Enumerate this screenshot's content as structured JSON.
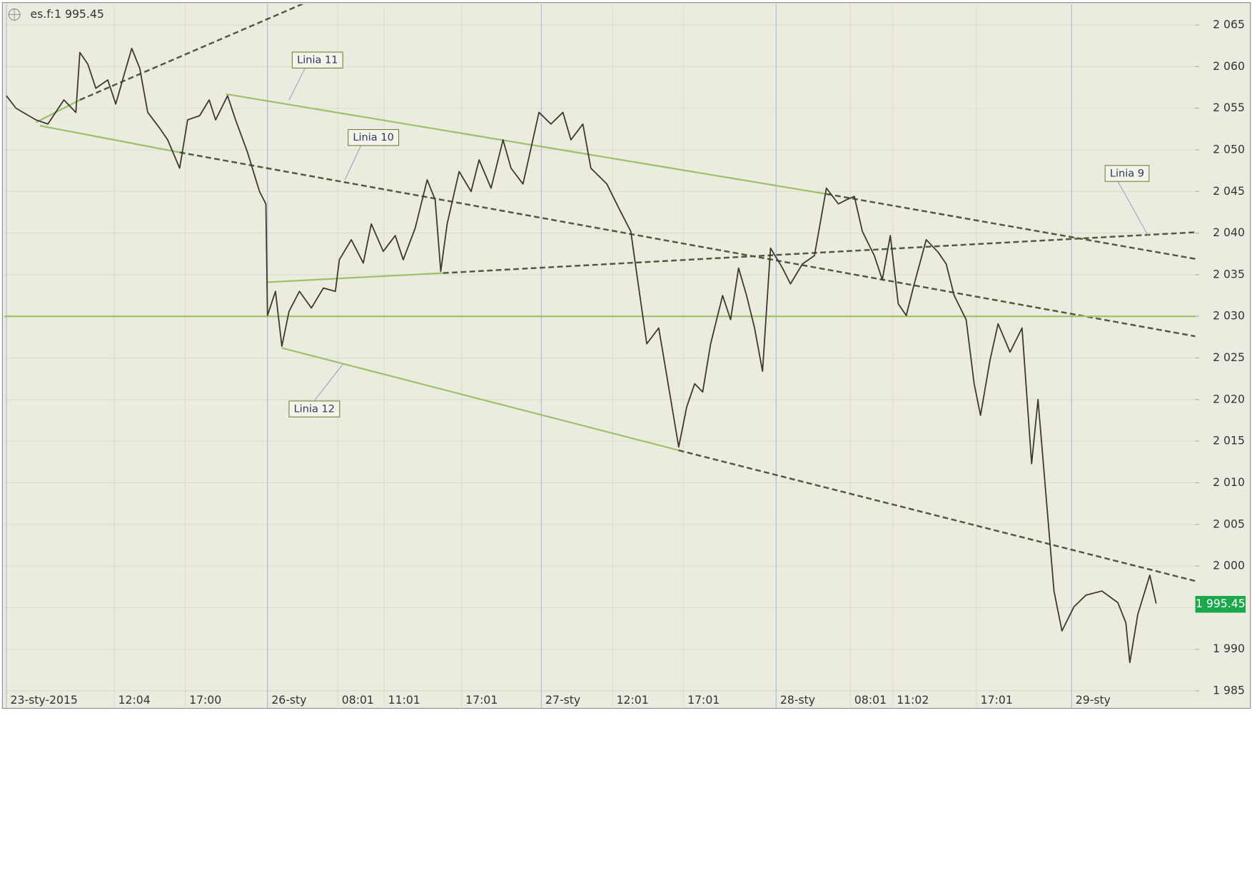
{
  "chart_data": {
    "type": "line",
    "header": {
      "symbol": "es.f:",
      "last": 1995.45,
      "last_label": "1 995.45",
      "last_color": "#1aa84a"
    },
    "x": [
      3,
      15,
      40,
      55,
      75,
      90,
      95,
      105,
      115,
      130,
      140,
      150,
      160,
      170,
      180,
      195,
      205,
      220,
      230,
      245,
      257,
      265,
      280,
      290,
      305,
      320,
      328,
      330,
      340,
      348,
      357,
      370,
      385,
      400,
      415,
      420,
      435,
      450,
      460,
      475,
      490,
      500,
      515,
      530,
      540,
      547,
      555,
      570,
      585,
      595,
      610,
      625,
      635,
      650,
      670,
      685,
      700,
      710,
      725,
      735,
      755,
      770,
      785,
      795,
      805,
      820,
      830,
      845,
      855,
      865,
      875,
      885,
      900,
      910,
      920,
      930,
      940,
      950,
      960,
      975,
      985,
      1000,
      1015,
      1030,
      1045,
      1055,
      1065,
      1075,
      1090,
      1100,
      1110,
      1120,
      1130,
      1140,
      1155,
      1170,
      1180,
      1190,
      1205,
      1215,
      1223,
      1235,
      1245,
      1260,
      1275,
      1287,
      1295,
      1305,
      1315,
      1325,
      1340,
      1355,
      1375,
      1395,
      1405,
      1410,
      1420,
      1435,
      1443
    ],
    "series": [
      {
        "name": "es.f",
        "color": "#3b3a2a",
        "values": [
          2056.5,
          2055.0,
          2053.6,
          2053.1,
          2056.0,
          2054.5,
          2061.7,
          2060.3,
          2057.4,
          2058.4,
          2055.5,
          2058.9,
          2062.2,
          2059.8,
          2054.5,
          2052.6,
          2051.2,
          2047.8,
          2053.6,
          2054.1,
          2056.0,
          2053.6,
          2056.5,
          2053.6,
          2049.7,
          2045.0,
          2043.5,
          2030.1,
          2033.0,
          2026.4,
          2030.6,
          2033.0,
          2031.0,
          2033.4,
          2033.0,
          2036.8,
          2039.2,
          2036.4,
          2041.1,
          2037.8,
          2039.7,
          2036.8,
          2040.6,
          2046.4,
          2044.0,
          2035.4,
          2041.1,
          2047.4,
          2045.0,
          2048.8,
          2045.4,
          2051.2,
          2047.8,
          2045.9,
          2054.5,
          2053.1,
          2054.5,
          2051.2,
          2053.1,
          2047.8,
          2045.9,
          2043.0,
          2040.2,
          2033.4,
          2026.7,
          2028.6,
          2022.9,
          2014.3,
          2019.1,
          2021.9,
          2020.9,
          2026.7,
          2032.5,
          2029.6,
          2035.8,
          2032.5,
          2028.6,
          2023.4,
          2038.2,
          2035.8,
          2033.9,
          2036.3,
          2037.3,
          2045.4,
          2043.5,
          2044.0,
          2044.4,
          2040.2,
          2037.3,
          2034.4,
          2039.7,
          2031.5,
          2030.1,
          2033.9,
          2039.2,
          2037.7,
          2036.3,
          2032.5,
          2029.6,
          2021.9,
          2018.1,
          2024.8,
          2029.1,
          2025.7,
          2028.6,
          2012.3,
          2020.0,
          2008.5,
          1997.0,
          1992.2,
          1995.1,
          1996.5,
          1997.0,
          1995.6,
          1993.2,
          1988.4,
          1994.2,
          1998.9,
          1995.5
        ]
      }
    ],
    "trendlines": [
      {
        "x": [
          40,
          95,
          390
        ],
        "values": [
          2053.3,
          2056.0,
          2068.2
        ]
      },
      {
        "name": "Linia 10",
        "x": [
          45,
          220,
          1492
        ],
        "values": [
          2052.9,
          2049.7,
          2027.6
        ]
      },
      {
        "name": "Linia 11",
        "x": [
          278,
          1030,
          1492
        ],
        "values": [
          2056.7,
          2044.7,
          2036.9
        ]
      },
      {
        "name": "Linia 9",
        "x": [
          330,
          550,
          1492
        ],
        "values": [
          2034.1,
          2035.2,
          2040.1
        ]
      },
      {
        "name": "Linia 12",
        "x": [
          348,
          845,
          1492
        ],
        "values": [
          2026.2,
          2013.9,
          1998.2
        ]
      },
      {
        "x": [
          0,
          1492
        ],
        "values": [
          2030,
          2030
        ]
      }
    ],
    "line_colors": {
      "solid": "#9bc26a",
      "dashed": "#4f5a3a"
    },
    "xlim": [
      0,
      1492
    ],
    "xticks": [
      {
        "value": 3,
        "label": "23-sty-2015"
      },
      {
        "value": 138,
        "label": "12:04"
      },
      {
        "value": 227,
        "label": "17:00"
      },
      {
        "value": 330,
        "label": "26-sty"
      },
      {
        "value": 418,
        "label": "08:01"
      },
      {
        "value": 476,
        "label": "11:01"
      },
      {
        "value": 573,
        "label": "17:01"
      },
      {
        "value": 673,
        "label": "27-sty"
      },
      {
        "value": 762,
        "label": "12:01"
      },
      {
        "value": 851,
        "label": "17:01"
      },
      {
        "value": 967,
        "label": "28-sty"
      },
      {
        "value": 1060,
        "label": "08:01"
      },
      {
        "value": 1113,
        "label": "11:02"
      },
      {
        "value": 1218,
        "label": "17:01"
      },
      {
        "value": 1337,
        "label": "29-sty"
      }
    ],
    "xgrid_colors": [
      "#a9bcd6",
      "#dcdbcf",
      "#dcdbcf",
      "#a9bcd6",
      "#dcdbcf",
      "#dcdbcf",
      "#dcdbcf",
      "#a9bcd6",
      "#dcdbcf",
      "#dcdbcf",
      "#a9bcd6",
      "#dcdbcf",
      "#dcdbcf",
      "#dcdbcf",
      "#a9bcd6"
    ],
    "ylim": [
      1982.9,
      2067.5
    ],
    "yticks": [
      {
        "value": 1985,
        "label": "1 985"
      },
      {
        "value": 1990,
        "label": "1 990"
      },
      {
        "value": 1995,
        "label": "1 995"
      },
      {
        "value": 2000,
        "label": "2 000"
      },
      {
        "value": 2005,
        "label": "2 005"
      },
      {
        "value": 2010,
        "label": "2 010"
      },
      {
        "value": 2015,
        "label": "2 015"
      },
      {
        "value": 2020,
        "label": "2 020"
      },
      {
        "value": 2025,
        "label": "2 025"
      },
      {
        "value": 2030,
        "label": "2 030"
      },
      {
        "value": 2035,
        "label": "2 035"
      },
      {
        "value": 2040,
        "label": "2 040"
      },
      {
        "value": 2045,
        "label": "2 045"
      },
      {
        "value": 2050,
        "label": "2 050"
      },
      {
        "value": 2055,
        "label": "2 055"
      },
      {
        "value": 2060,
        "label": "2 060"
      },
      {
        "value": 2065,
        "label": "2 065"
      }
    ],
    "grid": true,
    "background": "#ecebdf"
  }
}
